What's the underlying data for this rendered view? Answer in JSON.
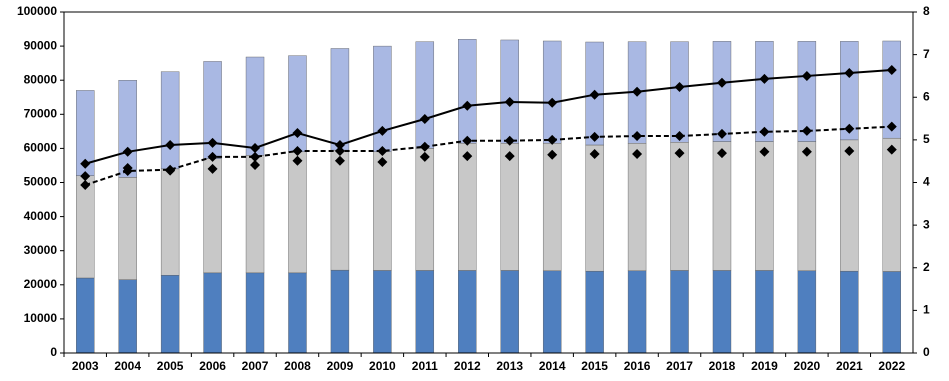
{
  "chart_data": {
    "type": "bar",
    "stacked": true,
    "categories": [
      "2003",
      "2004",
      "2005",
      "2006",
      "2007",
      "2008",
      "2009",
      "2010",
      "2011",
      "2012",
      "2013",
      "2014",
      "2015",
      "2016",
      "2017",
      "2018",
      "2019",
      "2020",
      "2021",
      "2022"
    ],
    "series": [
      {
        "type": "bar",
        "color": "#4f7fbf",
        "values": [
          22000,
          21500,
          22800,
          23500,
          23500,
          23500,
          24300,
          24200,
          24200,
          24200,
          24200,
          24100,
          24000,
          24100,
          24200,
          24200,
          24200,
          24100,
          24000,
          23900
        ]
      },
      {
        "type": "bar",
        "color": "#c8c8c8",
        "values": [
          30000,
          30000,
          31200,
          33500,
          34500,
          35500,
          35200,
          34800,
          35800,
          37300,
          37300,
          37400,
          37000,
          37400,
          37600,
          37800,
          37800,
          37900,
          38500,
          39100
        ]
      },
      {
        "type": "bar",
        "color": "#a9b8e3",
        "values": [
          25000,
          28500,
          28500,
          28500,
          28800,
          28200,
          29800,
          31000,
          31300,
          30500,
          30300,
          30000,
          30200,
          29800,
          29500,
          29400,
          29400,
          29400,
          28900,
          28500
        ]
      },
      {
        "type": "line",
        "axis": "y2",
        "color": "#000000",
        "linestyle": "solid",
        "marker": "diamond",
        "values": [
          4.44,
          4.72,
          4.88,
          4.93,
          4.81,
          5.16,
          4.88,
          5.21,
          5.49,
          5.8,
          5.89,
          5.87,
          6.06,
          6.13,
          6.24,
          6.34,
          6.43,
          6.5,
          6.57,
          6.64
        ]
      },
      {
        "type": "line",
        "axis": "y2",
        "color": "#000000",
        "linestyle": "dashed",
        "marker": "diamond",
        "values": [
          3.94,
          4.27,
          4.3,
          4.6,
          4.6,
          4.74,
          4.74,
          4.74,
          4.84,
          4.98,
          4.98,
          5.0,
          5.07,
          5.09,
          5.09,
          5.14,
          5.19,
          5.21,
          5.26,
          5.31
        ]
      },
      {
        "type": "scatter",
        "axis": "y2",
        "color": "#000000",
        "marker": "diamond",
        "values": [
          4.15,
          4.34,
          4.28,
          4.32,
          4.41,
          4.51,
          4.51,
          4.48,
          4.6,
          4.62,
          4.62,
          4.65,
          4.67,
          4.67,
          4.69,
          4.69,
          4.72,
          4.72,
          4.74,
          4.77
        ]
      }
    ],
    "ylim": [
      0,
      100000
    ],
    "yticks": [
      0,
      10000,
      20000,
      30000,
      40000,
      50000,
      60000,
      70000,
      80000,
      90000,
      100000
    ],
    "y2lim": [
      0,
      8
    ],
    "y2ticks": [
      0,
      1,
      2,
      3,
      4,
      5,
      6,
      7,
      8
    ],
    "grid": false
  }
}
